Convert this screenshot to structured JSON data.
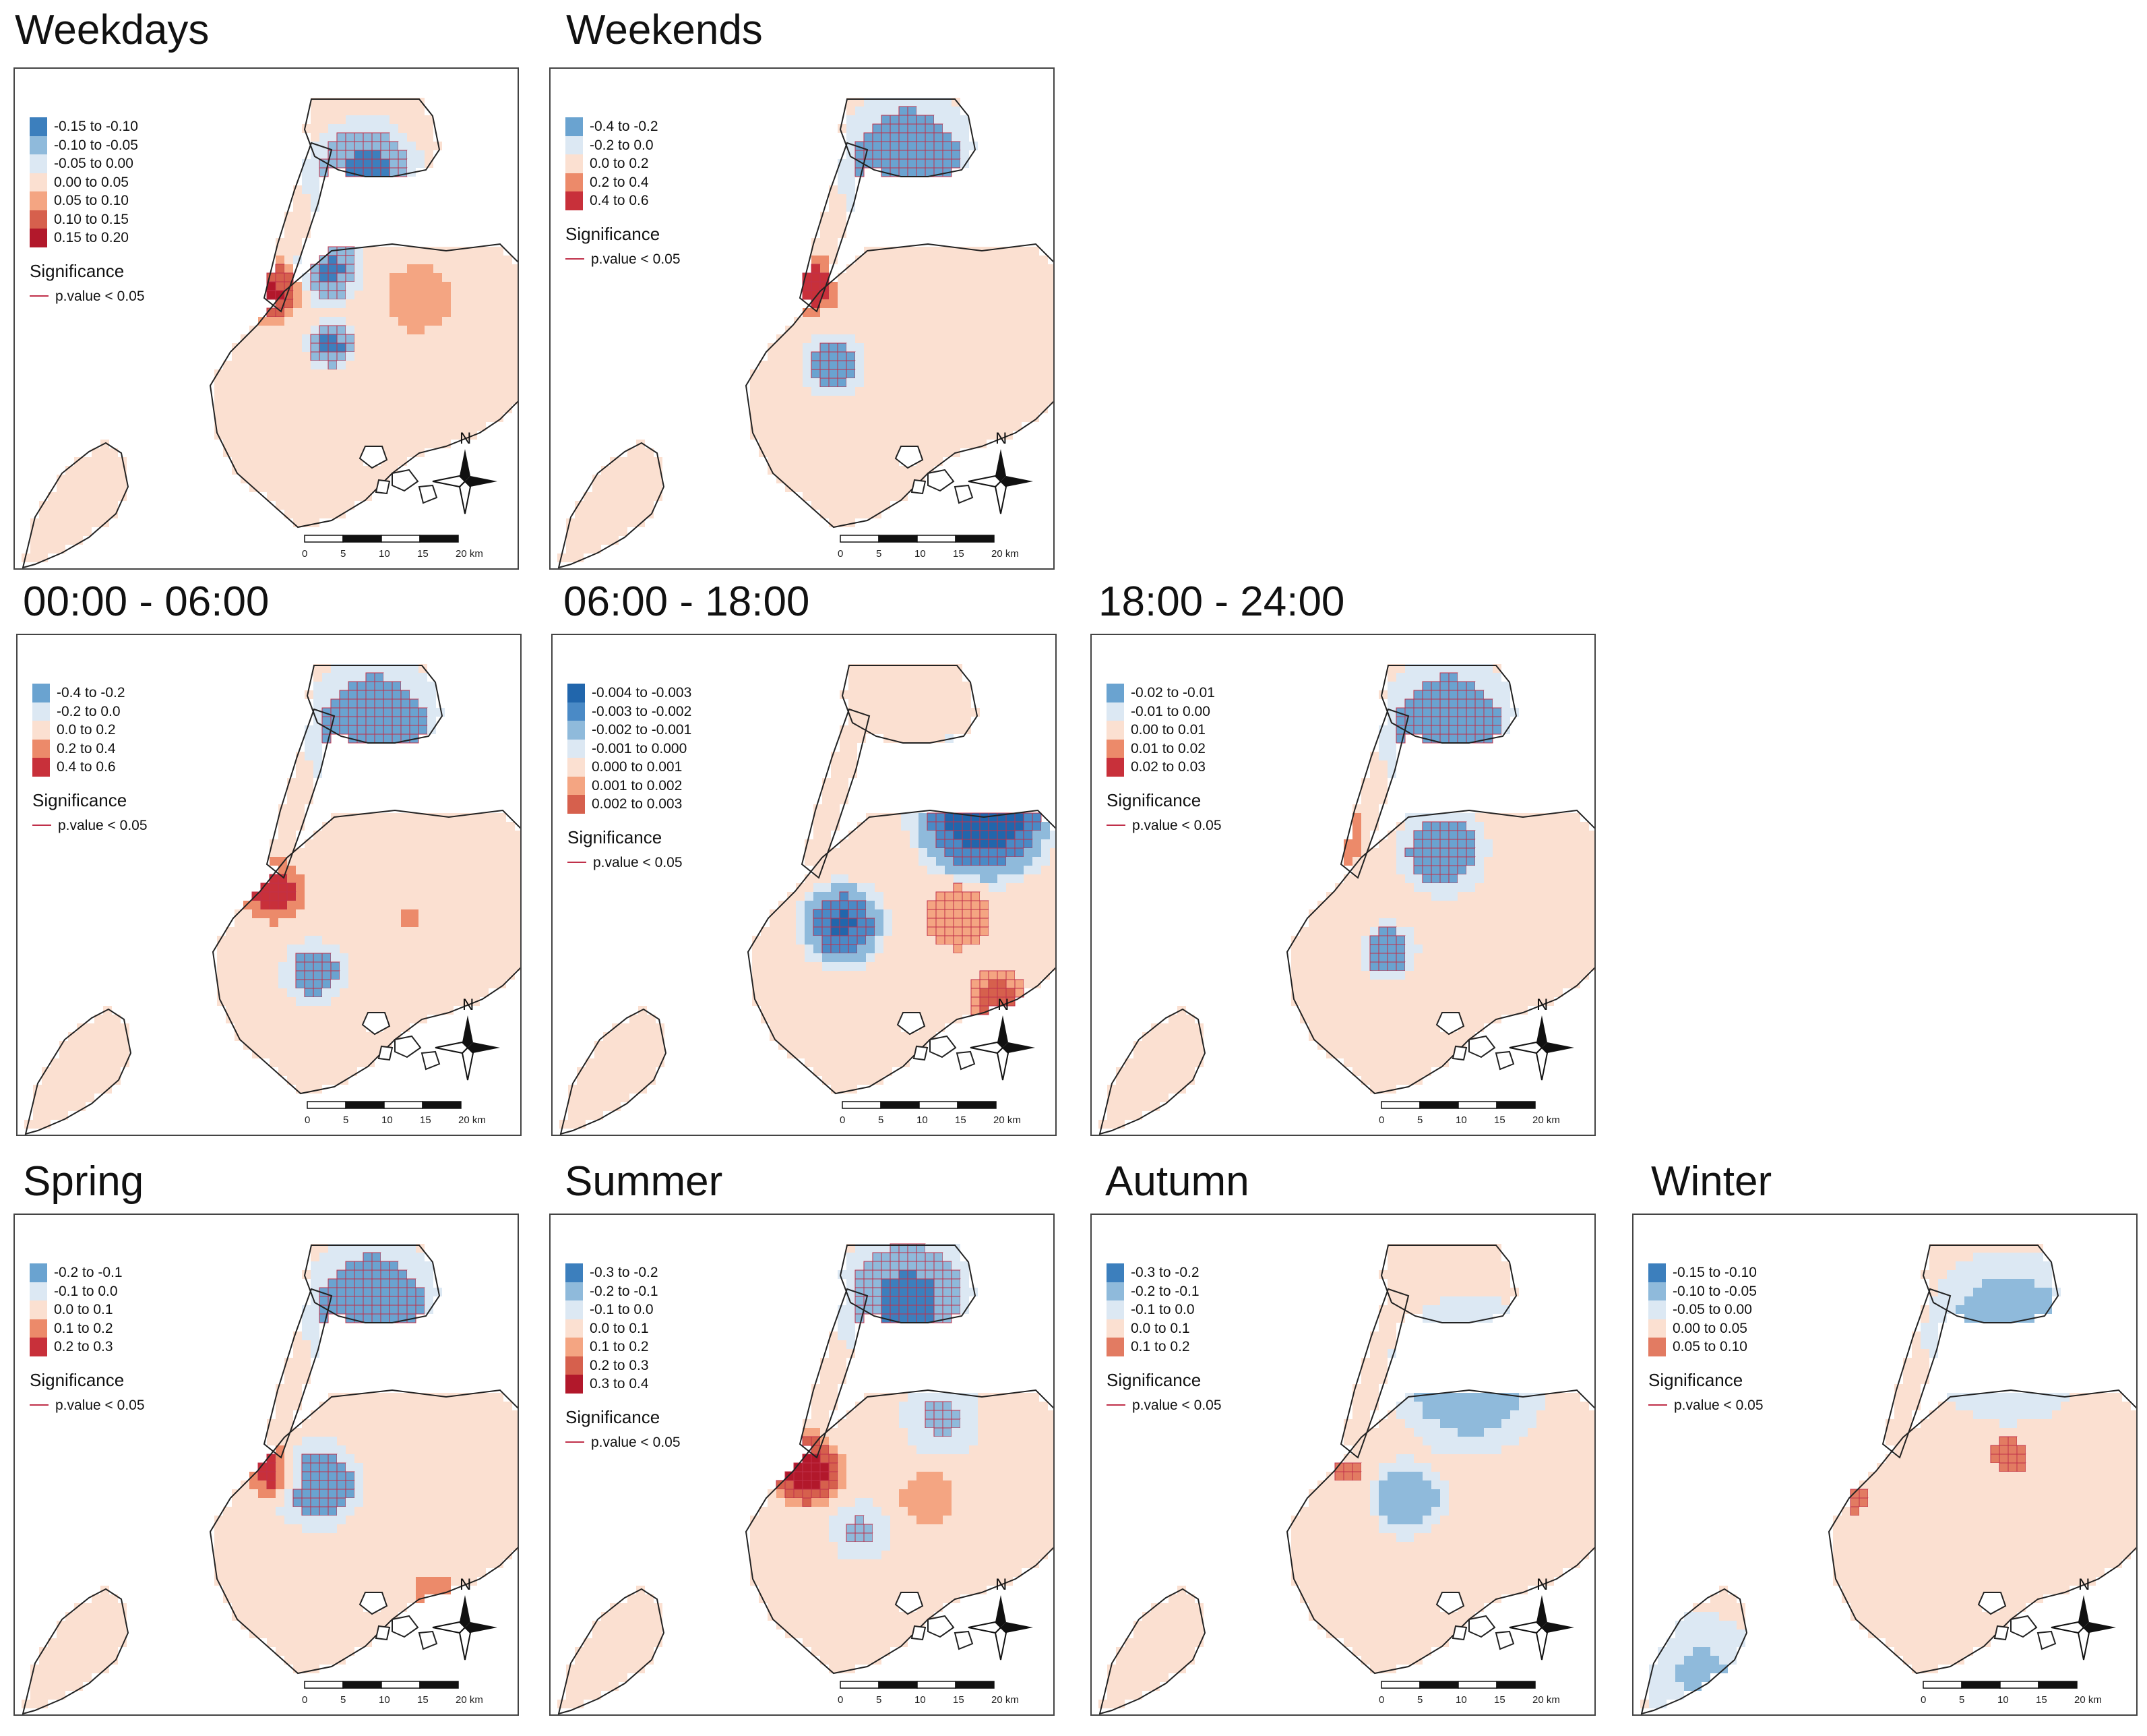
{
  "significance": {
    "title": "Significance",
    "label": "p.value < 0.05"
  },
  "north_label": "N",
  "scale": {
    "ticks": [
      "0",
      "5",
      "10",
      "15",
      "20 km"
    ]
  },
  "panels": [
    {
      "id": "weekdays",
      "title": "Weekdays",
      "colormode": "mixed",
      "legend": [
        {
          "label": "-0.15 to -0.10",
          "color": "#3c7fbd"
        },
        {
          "label": "-0.10 to -0.05",
          "color": "#8fbadb"
        },
        {
          "label": "-0.05 to 0.00",
          "color": "#dce8f3"
        },
        {
          "label": "0.00 to 0.05",
          "color": "#fbe0d1"
        },
        {
          "label": "0.05 to 0.10",
          "color": "#f4a582"
        },
        {
          "label": "0.10 to 0.15",
          "color": "#d6604d"
        },
        {
          "label": "0.15 to 0.20",
          "color": "#b2182b"
        }
      ]
    },
    {
      "id": "weekends",
      "title": "Weekends",
      "colormode": "mixed",
      "legend": [
        {
          "label": "-0.4 to -0.2",
          "color": "#6aa3d0"
        },
        {
          "label": "-0.2 to 0.0",
          "color": "#dce8f3"
        },
        {
          "label": "0.0 to 0.2",
          "color": "#fbe0d1"
        },
        {
          "label": "0.2 to 0.4",
          "color": "#ec8a6a"
        },
        {
          "label": "0.4 to 0.6",
          "color": "#c8303a"
        }
      ]
    },
    {
      "id": "night",
      "title": "00:00 - 06:00",
      "colormode": "mixed",
      "legend": [
        {
          "label": "-0.4 to -0.2",
          "color": "#6aa3d0"
        },
        {
          "label": "-0.2 to 0.0",
          "color": "#dce8f3"
        },
        {
          "label": "0.0 to 0.2",
          "color": "#fbe0d1"
        },
        {
          "label": "0.2 to 0.4",
          "color": "#ec8a6a"
        },
        {
          "label": "0.4 to 0.6",
          "color": "#c8303a"
        }
      ]
    },
    {
      "id": "day",
      "title": "06:00 - 18:00",
      "colormode": "day",
      "legend": [
        {
          "label": "-0.004 to -0.003",
          "color": "#2166ac"
        },
        {
          "label": "-0.003 to -0.002",
          "color": "#4a8ac6"
        },
        {
          "label": "-0.002 to -0.001",
          "color": "#8fbadb"
        },
        {
          "label": "-0.001 to 0.000",
          "color": "#dce8f3"
        },
        {
          "label": "0.000 to 0.001",
          "color": "#fbe0d1"
        },
        {
          "label": "0.001 to 0.002",
          "color": "#f4a582"
        },
        {
          "label": "0.002 to 0.003",
          "color": "#d6604d"
        }
      ]
    },
    {
      "id": "evening",
      "title": "18:00 - 24:00",
      "colormode": "mixed",
      "legend": [
        {
          "label": "-0.02 to -0.01",
          "color": "#6aa3d0"
        },
        {
          "label": "-0.01 to 0.00",
          "color": "#dce8f3"
        },
        {
          "label": "0.00 to 0.01",
          "color": "#fbe0d1"
        },
        {
          "label": "0.01 to 0.02",
          "color": "#ec8a6a"
        },
        {
          "label": "0.02 to 0.03",
          "color": "#c8303a"
        }
      ]
    },
    {
      "id": "spring",
      "title": "Spring",
      "colormode": "mixed",
      "legend": [
        {
          "label": "-0.2 to -0.1",
          "color": "#6aa3d0"
        },
        {
          "label": "-0.1 to 0.0",
          "color": "#dce8f3"
        },
        {
          "label": "0.0 to 0.1",
          "color": "#fbe0d1"
        },
        {
          "label": "0.1 to 0.2",
          "color": "#ec8a6a"
        },
        {
          "label": "0.2 to 0.3",
          "color": "#c8303a"
        }
      ]
    },
    {
      "id": "summer",
      "title": "Summer",
      "colormode": "mixed",
      "legend": [
        {
          "label": "-0.3 to -0.2",
          "color": "#3c7fbd"
        },
        {
          "label": "-0.2 to -0.1",
          "color": "#8fbadb"
        },
        {
          "label": "-0.1 to 0.0",
          "color": "#dce8f3"
        },
        {
          "label": "0.0 to 0.1",
          "color": "#fbe0d1"
        },
        {
          "label": "0.1 to 0.2",
          "color": "#f4a582"
        },
        {
          "label": "0.2 to 0.3",
          "color": "#d6604d"
        },
        {
          "label": "0.3 to 0.4",
          "color": "#b2182b"
        }
      ]
    },
    {
      "id": "autumn",
      "title": "Autumn",
      "colormode": "cool",
      "legend": [
        {
          "label": "-0.3 to -0.2",
          "color": "#3c7fbd"
        },
        {
          "label": "-0.2 to -0.1",
          "color": "#8fbadb"
        },
        {
          "label": "-0.1 to 0.0",
          "color": "#dce8f3"
        },
        {
          "label": "0.0 to 0.1",
          "color": "#fbe0d1"
        },
        {
          "label": "0.1 to 0.2",
          "color": "#e27b62"
        }
      ]
    },
    {
      "id": "winter",
      "title": "Winter",
      "colormode": "cool",
      "legend": [
        {
          "label": "-0.15 to -0.10",
          "color": "#3c7fbd"
        },
        {
          "label": "-0.10 to -0.05",
          "color": "#8fbadb"
        },
        {
          "label": "-0.05 to 0.00",
          "color": "#dce8f3"
        },
        {
          "label": "0.00 to 0.05",
          "color": "#fbe0d1"
        },
        {
          "label": "0.05 to 0.10",
          "color": "#e27b62"
        }
      ]
    }
  ]
}
